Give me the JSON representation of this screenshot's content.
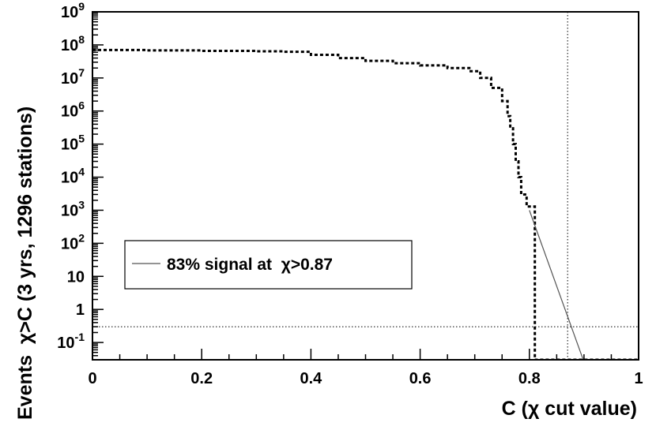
{
  "chart_data": {
    "type": "line",
    "xlabel": "C (χ cut value)",
    "ylabel": "Events  χ>C (3 yrs, 1296 stations)",
    "x_scale": "linear",
    "y_scale": "log",
    "xlim": [
      0,
      1
    ],
    "ylim": [
      0.03,
      1000000000
    ],
    "x_ticks": [
      "0",
      "0.2",
      "0.4",
      "0.6",
      "0.8",
      "1"
    ],
    "y_ticks": [
      {
        "value": 0.1,
        "base": "10",
        "exp": "-1",
        "plain": ""
      },
      {
        "value": 1,
        "base": "",
        "exp": "",
        "plain": "1"
      },
      {
        "value": 10,
        "base": "",
        "exp": "",
        "plain": "10"
      },
      {
        "value": 100,
        "base": "10",
        "exp": "2",
        "plain": ""
      },
      {
        "value": 1000,
        "base": "10",
        "exp": "3",
        "plain": ""
      },
      {
        "value": 10000,
        "base": "10",
        "exp": "4",
        "plain": ""
      },
      {
        "value": 100000,
        "base": "10",
        "exp": "5",
        "plain": ""
      },
      {
        "value": 1000000,
        "base": "10",
        "exp": "6",
        "plain": ""
      },
      {
        "value": 10000000,
        "base": "10",
        "exp": "7",
        "plain": ""
      },
      {
        "value": 100000000,
        "base": "10",
        "exp": "8",
        "plain": ""
      },
      {
        "value": 1000000000,
        "base": "10",
        "exp": "9",
        "plain": ""
      }
    ],
    "grid": false,
    "legend_position": "lower-left",
    "series": [
      {
        "label": "",
        "style": "dashed-histogram",
        "color": "#000000",
        "points": [
          [
            0.0,
            70000000
          ],
          [
            0.1,
            68000000
          ],
          [
            0.2,
            66000000
          ],
          [
            0.3,
            64000000
          ],
          [
            0.35,
            62000000
          ],
          [
            0.4,
            50000000
          ],
          [
            0.45,
            40000000
          ],
          [
            0.5,
            33000000
          ],
          [
            0.55,
            28000000
          ],
          [
            0.6,
            24000000
          ],
          [
            0.65,
            20000000
          ],
          [
            0.69,
            16000000
          ],
          [
            0.71,
            10000000
          ],
          [
            0.73,
            5000000
          ],
          [
            0.75,
            2000000
          ],
          [
            0.76,
            700000
          ],
          [
            0.765,
            300000
          ],
          [
            0.77,
            100000
          ],
          [
            0.775,
            30000
          ],
          [
            0.78,
            10000
          ],
          [
            0.785,
            3000
          ],
          [
            0.795,
            1300
          ],
          [
            0.81,
            1300
          ],
          [
            0.81,
            0.03
          ],
          [
            1.0,
            0.03
          ]
        ]
      },
      {
        "label": "83% signal at  χ>0.87",
        "style": "solid-line",
        "color": "#555555",
        "points": [
          [
            0.8,
            1000
          ],
          [
            0.8985,
            0.03
          ]
        ]
      }
    ],
    "reference_lines": [
      {
        "orientation": "vertical",
        "x": 0.87,
        "style": "dotted"
      },
      {
        "orientation": "horizontal",
        "y": 0.3,
        "style": "dotted"
      }
    ]
  }
}
